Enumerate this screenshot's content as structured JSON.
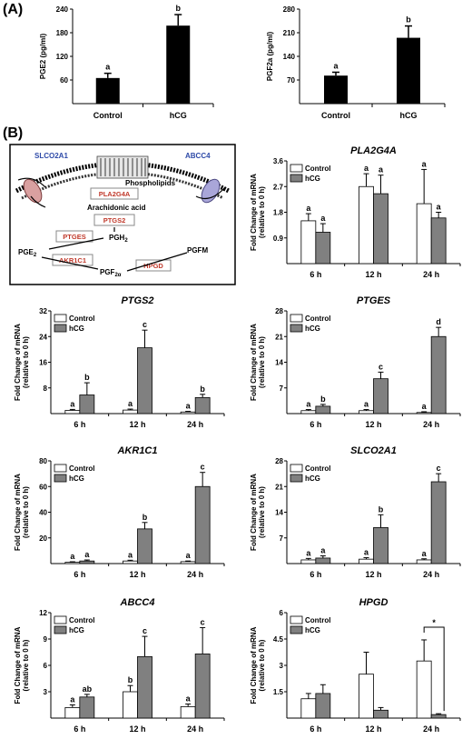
{
  "panel_labels": {
    "a": "(A)",
    "b": "(B)"
  },
  "pathway": {
    "transporter_left": "SLCO2A1",
    "transporter_right": "ABCC4",
    "phospholipids": "Phospholipids",
    "arachidonic": "Arachidonic acid",
    "enzymes": [
      "PLA2G4A",
      "PTGS2",
      "PTGES",
      "AKR1C1",
      "HPGD"
    ],
    "pgh2": "PGH",
    "pgh2_sub": "2",
    "pge2": "PGE",
    "pge2_sub": "2",
    "pgf2a": "PGF",
    "pgf2a_sub": "2α",
    "pgfm": "PGFM"
  },
  "chart_data": [
    {
      "id": "pge2",
      "type": "bar",
      "title": "",
      "xlabel": "",
      "ylabel": "PGE2 (pg/ml)",
      "categories": [
        "Control",
        "hCG"
      ],
      "values": [
        65,
        198
      ],
      "errors": [
        12,
        28
      ],
      "letters": [
        "a",
        "b"
      ],
      "ylim": [
        0,
        240
      ],
      "yticks": [
        "60",
        "120",
        "180",
        "240"
      ]
    },
    {
      "id": "pgf2a",
      "type": "bar",
      "title": "",
      "xlabel": "",
      "ylabel": "PGF2a (pg/ml)",
      "categories": [
        "Control",
        "hCG"
      ],
      "values": [
        83,
        195
      ],
      "errors": [
        10,
        35
      ],
      "letters": [
        "a",
        "b"
      ],
      "ylim": [
        0,
        280
      ],
      "yticks": [
        "70",
        "140",
        "210",
        "280"
      ]
    },
    {
      "id": "pla2g4a",
      "type": "bar",
      "title": "PLA2G4A",
      "ylabel": "Fold Change of mRNA (relative to 0 h)",
      "categories": [
        "6 h",
        "12 h",
        "24 h"
      ],
      "series": [
        {
          "name": "Control",
          "values": [
            1.5,
            2.7,
            2.1
          ],
          "errors": [
            0.25,
            0.45,
            1.2
          ],
          "letters": [
            "a",
            "a",
            "a"
          ]
        },
        {
          "name": "hCG",
          "values": [
            1.1,
            2.45,
            1.6
          ],
          "errors": [
            0.3,
            0.65,
            0.2
          ],
          "letters": [
            "a",
            "a",
            "a"
          ]
        }
      ],
      "ylim": [
        0,
        3.6
      ],
      "yticks": [
        "0.9",
        "1.8",
        "2.7",
        "3.6"
      ]
    },
    {
      "id": "ptgs2",
      "type": "bar",
      "title": "PTGS2",
      "ylabel": "Fold Change of mRNA (relative to 0 h)",
      "categories": [
        "6 h",
        "12 h",
        "24 h"
      ],
      "series": [
        {
          "name": "Control",
          "values": [
            1.0,
            1.1,
            0.5
          ],
          "errors": [
            0.3,
            0.3,
            0.2
          ],
          "letters": [
            "a",
            "a",
            "a"
          ]
        },
        {
          "name": "hCG",
          "values": [
            5.8,
            20.5,
            5.0
          ],
          "errors": [
            3.8,
            5.5,
            1.0
          ],
          "letters": [
            "b",
            "c",
            "b"
          ]
        }
      ],
      "ylim": [
        0,
        32
      ],
      "yticks": [
        "8",
        "16",
        "24",
        "32"
      ]
    },
    {
      "id": "ptges",
      "type": "bar",
      "title": "PTGES",
      "ylabel": "Fold Change of mRNA (relative to 0 h)",
      "categories": [
        "6 h",
        "12 h",
        "24 h"
      ],
      "series": [
        {
          "name": "Control",
          "values": [
            0.8,
            0.8,
            0.3
          ],
          "errors": [
            0.3,
            0.3,
            0.2
          ],
          "letters": [
            "a",
            "a",
            "a"
          ]
        },
        {
          "name": "hCG",
          "values": [
            2.0,
            9.5,
            21.0
          ],
          "errors": [
            0.5,
            1.8,
            2.5
          ],
          "letters": [
            "b",
            "c",
            "d"
          ]
        }
      ],
      "ylim": [
        0,
        28
      ],
      "yticks": [
        "7",
        "14",
        "21",
        "28"
      ]
    },
    {
      "id": "akr1c1",
      "type": "bar",
      "title": "AKR1C1",
      "ylabel": "Fold Change of mRNA (relative to 0 h)",
      "categories": [
        "6 h",
        "12 h",
        "24 h"
      ],
      "series": [
        {
          "name": "Control",
          "values": [
            1.0,
            2.0,
            1.5
          ],
          "errors": [
            0.4,
            0.6,
            0.5
          ],
          "letters": [
            "a",
            "a",
            "a"
          ]
        },
        {
          "name": "hCG",
          "values": [
            2.0,
            27.0,
            60.0
          ],
          "errors": [
            0.8,
            5.0,
            11.0
          ],
          "letters": [
            "a",
            "b",
            "c"
          ]
        }
      ],
      "ylim": [
        0,
        80
      ],
      "yticks": [
        "20",
        "40",
        "60",
        "80"
      ]
    },
    {
      "id": "slco2a1",
      "type": "bar",
      "title": "SLCO2A1",
      "ylabel": "Fold Change of mRNA (relative to 0 h)",
      "categories": [
        "6 h",
        "12 h",
        "24 h"
      ],
      "series": [
        {
          "name": "Control",
          "values": [
            1.0,
            1.2,
            1.0
          ],
          "errors": [
            0.4,
            0.4,
            0.3
          ],
          "letters": [
            "a",
            "a",
            "a"
          ]
        },
        {
          "name": "hCG",
          "values": [
            1.5,
            9.8,
            22.3
          ],
          "errors": [
            0.6,
            3.5,
            2.2
          ],
          "letters": [
            "a",
            "b",
            "c"
          ]
        }
      ],
      "ylim": [
        0,
        28
      ],
      "yticks": [
        "7",
        "14",
        "21",
        "28"
      ]
    },
    {
      "id": "abcc4",
      "type": "bar",
      "title": "ABCC4",
      "ylabel": "Fold Change of mRNA (relative to 0 h)",
      "categories": [
        "6 h",
        "12 h",
        "24 h"
      ],
      "series": [
        {
          "name": "Control",
          "values": [
            1.2,
            3.0,
            1.3
          ],
          "errors": [
            0.3,
            0.7,
            0.3
          ],
          "letters": [
            "a",
            "b",
            "a"
          ]
        },
        {
          "name": "hCG",
          "values": [
            2.4,
            7.0,
            7.3
          ],
          "errors": [
            0.3,
            2.3,
            3.0
          ],
          "letters": [
            "ab",
            "c",
            "c"
          ]
        }
      ],
      "ylim": [
        0,
        12
      ],
      "yticks": [
        "3",
        "6",
        "9",
        "12"
      ]
    },
    {
      "id": "hpgd",
      "type": "bar",
      "title": "HPGD",
      "ylabel": "Fold Change of mRNA (relative to 0 h)",
      "categories": [
        "6 h",
        "12 h",
        "24 h"
      ],
      "series": [
        {
          "name": "Control",
          "values": [
            1.1,
            2.5,
            3.25
          ],
          "errors": [
            0.3,
            1.25,
            1.2
          ],
          "letters": [
            "",
            "",
            ""
          ]
        },
        {
          "name": "hCG",
          "values": [
            1.4,
            0.45,
            0.2
          ],
          "errors": [
            0.5,
            0.15,
            0.05
          ],
          "letters": [
            "",
            "",
            ""
          ]
        }
      ],
      "significance": {
        "label": "*",
        "category": "24 h"
      },
      "ylim": [
        0,
        6
      ],
      "yticks": [
        "1.5",
        "3",
        "4.5",
        "6"
      ]
    }
  ]
}
